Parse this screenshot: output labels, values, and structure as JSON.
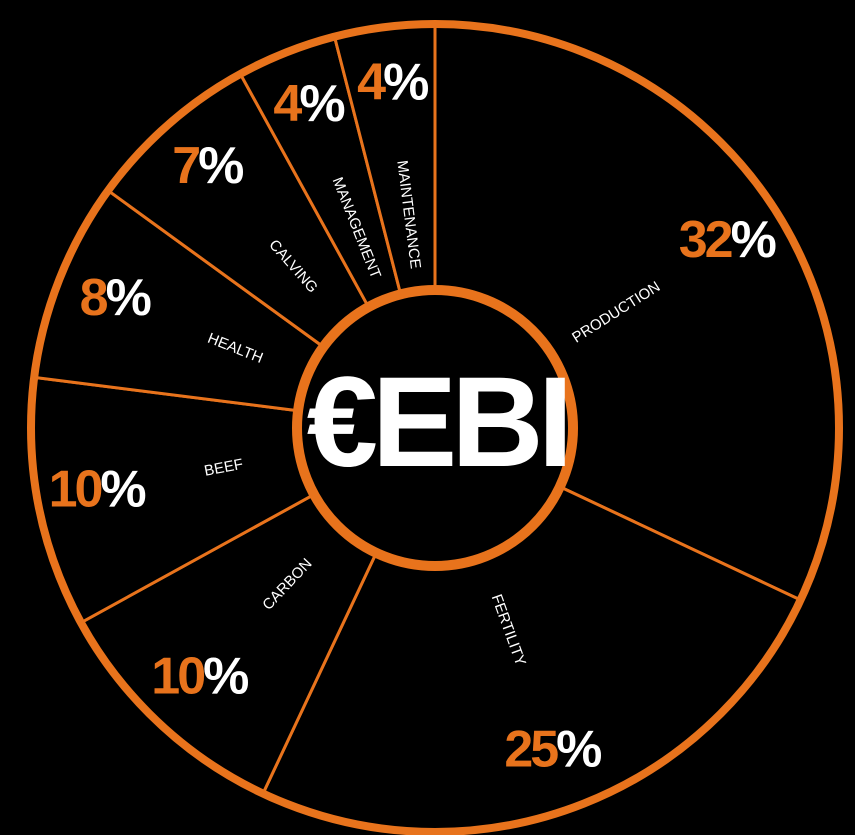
{
  "chart_data": {
    "type": "pie",
    "title": "€EBI",
    "categories": [
      "PRODUCTION",
      "FERTILITY",
      "CARBON",
      "BEEF",
      "HEALTH",
      "CALVING",
      "MANAGEMENT",
      "MAINTENANCE"
    ],
    "values": [
      32,
      25,
      10,
      10,
      8,
      7,
      4,
      4
    ],
    "unit": "%",
    "color": "#e8731c",
    "background": "#000000"
  }
}
